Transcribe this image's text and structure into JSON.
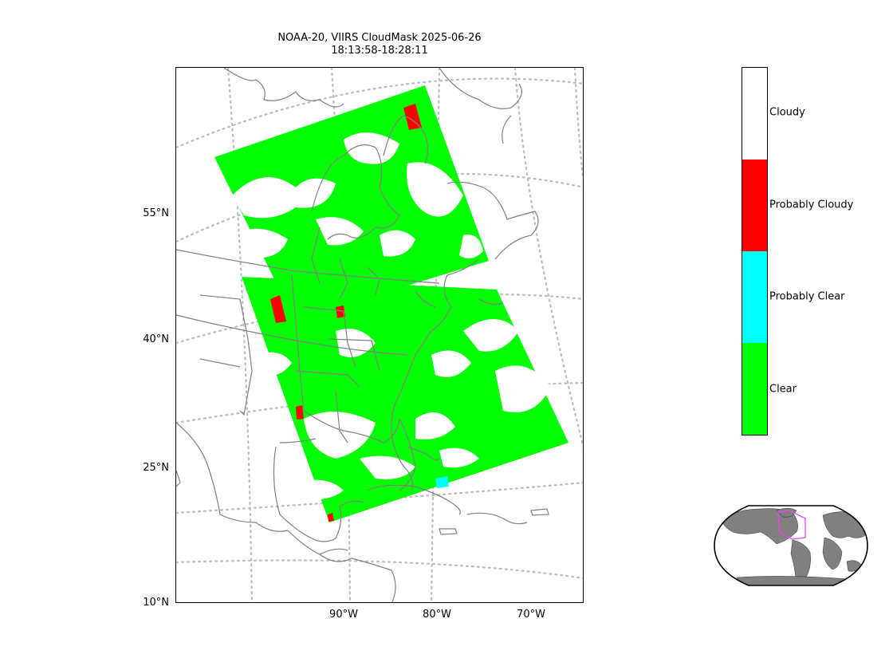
{
  "title": {
    "line1": "NOAA-20, VIIRS CloudMask 2025-06-26",
    "line2": "18:13:58-18:28:11"
  },
  "lat_labels": [
    "55°N",
    "40°N",
    "25°N",
    "10°N"
  ],
  "lon_labels": [
    "90°W",
    "80°W",
    "70°W"
  ],
  "legend": {
    "classes": [
      {
        "label": "Cloudy",
        "color": "#ffffff"
      },
      {
        "label": "Probably Cloudy",
        "color": "#ff0000"
      },
      {
        "label": "Probably Clear",
        "color": "#00ffff"
      },
      {
        "label": "Clear",
        "color": "#00ff00"
      }
    ]
  },
  "colors": {
    "coastline": "#808080",
    "graticule": "#bdbdbd",
    "inset_land": "#808080",
    "inset_box": "#ee44ee"
  }
}
